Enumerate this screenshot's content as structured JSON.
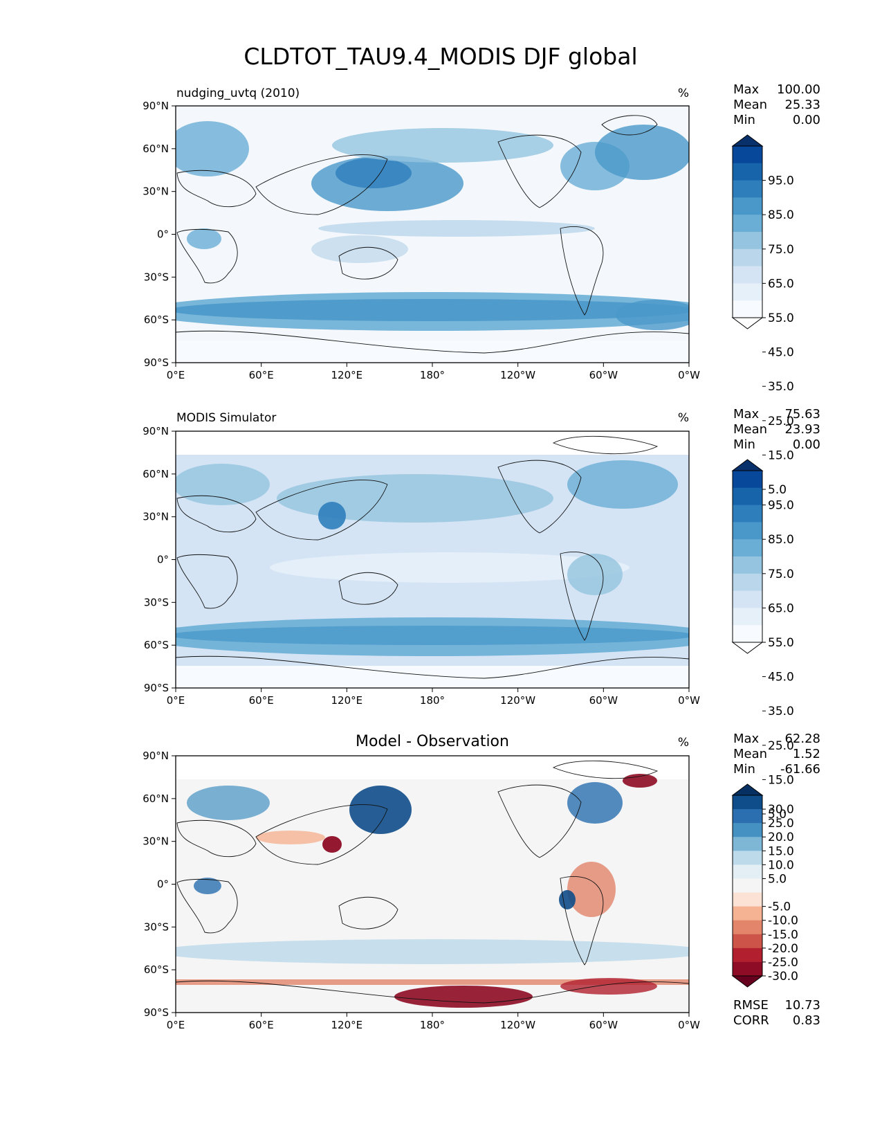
{
  "figure": {
    "title": "CLDTOT_TAU9.4_MODIS DJF global"
  },
  "axes": {
    "lat_ticks": [
      "90°N",
      "60°N",
      "30°N",
      "0°",
      "30°S",
      "60°S",
      "90°S"
    ],
    "lon_ticks": [
      "0°E",
      "60°E",
      "120°E",
      "180°",
      "120°W",
      "60°W",
      "0°W"
    ]
  },
  "panels": [
    {
      "title_left": "nudging_uvtq (2010)",
      "title_center": "",
      "units": "%",
      "stats": [
        {
          "label": "Max",
          "value": "100.00"
        },
        {
          "label": "Mean",
          "value": "25.33"
        },
        {
          "label": "Min",
          "value": "0.00"
        }
      ]
    },
    {
      "title_left": "MODIS Simulator",
      "title_center": "",
      "units": "%",
      "stats": [
        {
          "label": "Max",
          "value": "75.63"
        },
        {
          "label": "Mean",
          "value": "23.93"
        },
        {
          "label": "Min",
          "value": "0.00"
        }
      ]
    },
    {
      "title_left": "",
      "title_center": "Model - Observation",
      "units": "%",
      "stats": [
        {
          "label": "Max",
          "value": "62.28"
        },
        {
          "label": "Mean",
          "value": "1.52"
        },
        {
          "label": "Min",
          "value": "-61.66"
        }
      ],
      "metrics": [
        {
          "label": "RMSE",
          "value": "10.73"
        },
        {
          "label": "CORR",
          "value": "0.83"
        }
      ]
    }
  ],
  "colorbars": {
    "sequential": {
      "labels": [
        "95.0",
        "85.0",
        "75.0",
        "65.0",
        "55.0",
        "45.0",
        "35.0",
        "25.0",
        "15.0",
        "5.0"
      ],
      "colors": [
        "#08306b",
        "#08489a",
        "#1864aa",
        "#2f7ebc",
        "#4a98c9",
        "#6aaed6",
        "#94c4df",
        "#bad6eb",
        "#d4e4f4",
        "#e6f0f9",
        "#f7fbff",
        "#ffffff"
      ]
    },
    "diverging": {
      "labels": [
        "30.0",
        "25.0",
        "20.0",
        "15.0",
        "10.0",
        "5.0",
        "-5.0",
        "-10.0",
        "-15.0",
        "-20.0",
        "-25.0",
        "-30.0"
      ],
      "colors": [
        "#053061",
        "#0f4d8a",
        "#2b6fb0",
        "#4591c2",
        "#7eb6d6",
        "#bcdaea",
        "#e3eef5",
        "#f5f5f5",
        "#fbe2d4",
        "#f6b394",
        "#e2856b",
        "#cc5448",
        "#b22030",
        "#8e0c25",
        "#67001f"
      ]
    }
  },
  "chart_data": [
    {
      "type": "heatmap",
      "title": "nudging_uvtq (2010)",
      "variable": "CLDTOT_TAU9.4_MODIS",
      "season": "DJF",
      "region": "global",
      "units": "%",
      "max": 100.0,
      "mean": 25.33,
      "min": 0.0,
      "levels": [
        0,
        5,
        10,
        15,
        20,
        25,
        30,
        35,
        40,
        45,
        50,
        55,
        60,
        65,
        70,
        75,
        80,
        85,
        90,
        95,
        100
      ],
      "xlim": [
        0,
        360
      ],
      "ylim": [
        -90,
        90
      ]
    },
    {
      "type": "heatmap",
      "title": "MODIS Simulator",
      "units": "%",
      "max": 75.63,
      "mean": 23.93,
      "min": 0.0,
      "levels": [
        0,
        5,
        10,
        15,
        20,
        25,
        30,
        35,
        40,
        45,
        50,
        55,
        60,
        65,
        70,
        75,
        80,
        85,
        90,
        95,
        100
      ],
      "xlim": [
        0,
        360
      ],
      "ylim": [
        -90,
        90
      ]
    },
    {
      "type": "heatmap",
      "title": "Model - Observation",
      "units": "%",
      "max": 62.28,
      "mean": 1.52,
      "min": -61.66,
      "rmse": 10.73,
      "corr": 0.83,
      "levels": [
        -30,
        -25,
        -20,
        -15,
        -10,
        -5,
        5,
        10,
        15,
        20,
        25,
        30
      ],
      "xlim": [
        0,
        360
      ],
      "ylim": [
        -90,
        90
      ]
    }
  ]
}
